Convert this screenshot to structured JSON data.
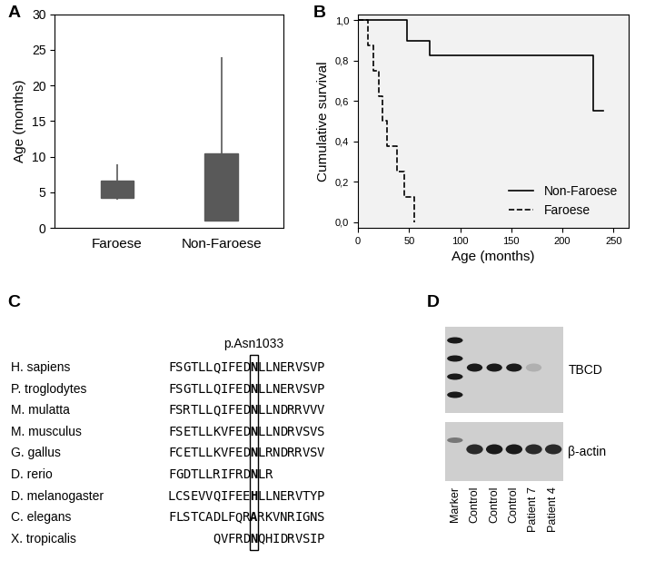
{
  "panel_labels": [
    "A",
    "B",
    "C",
    "D"
  ],
  "chart_data": [
    {
      "type": "box",
      "categories": [
        "Faroese",
        "Non-Faroese"
      ],
      "whisker_low": [
        4,
        1
      ],
      "q1": [
        4.2,
        1
      ],
      "q3": [
        6.7,
        10.5
      ],
      "whisker_high": [
        9,
        24
      ],
      "color": "#595959",
      "y_label": "Age (months)",
      "ylim": [
        0,
        30
      ],
      "yticks": [
        0,
        5,
        10,
        15,
        20,
        25,
        30
      ]
    },
    {
      "type": "step",
      "x_label": "Age (months)",
      "y_label": "Cumulative survival",
      "xlim": [
        0,
        265
      ],
      "xticks": [
        0,
        50,
        100,
        150,
        200,
        250
      ],
      "ylim": [
        -0.03,
        1.03
      ],
      "yticks": [
        {
          "value": 0,
          "label": "0,0"
        },
        {
          "value": 0.2,
          "label": "0,2"
        },
        {
          "value": 0.4,
          "label": "0,4"
        },
        {
          "value": 0.6,
          "label": "0,6"
        },
        {
          "value": 0.8,
          "label": "0,8"
        },
        {
          "value": 1.0,
          "label": "1,0"
        }
      ],
      "legend": "lower right",
      "series": [
        {
          "name": "Non-Faroese",
          "color": "#000000",
          "line_style": "solid",
          "x": [
            0,
            48,
            70,
            230,
            240
          ],
          "values": [
            1.0,
            0.9,
            0.825,
            0.55,
            0.55
          ]
        },
        {
          "name": "Faroese",
          "color": "#000000",
          "line_style": "dashed",
          "x": [
            0,
            10,
            15,
            20,
            24,
            28,
            38,
            45,
            55
          ],
          "values": [
            1.0,
            0.875,
            0.75,
            0.625,
            0.5,
            0.375,
            0.25,
            0.125,
            0.0
          ]
        }
      ]
    }
  ],
  "alignment": {
    "title": "p.Asn1033",
    "rows": [
      {
        "species": "H. sapiens",
        "sequence": "FSGTLLQIFEDNLLNERVSVP"
      },
      {
        "species": "P. troglodytes",
        "sequence": "FSGTLLQIFEDNLLNERVSVP"
      },
      {
        "species": "M. mulatta",
        "sequence": "FSRTLLQIFEDNLLNDRRVVV"
      },
      {
        "species": "M. musculus",
        "sequence": "FSETLLKVFEDNLLNDRVSVS"
      },
      {
        "species": "G. gallus",
        "sequence": "FCETLLKVFEDNLRNDRRVSV"
      },
      {
        "species": "D. rerio",
        "sequence": "FGDTLLRIFRDNLR"
      },
      {
        "species": "D. melanogaster",
        "sequence": "LCSEVVQIFEEHLLNERVTYP"
      },
      {
        "species": "C. elegans",
        "sequence": "FLSTCADLFQRARKVNRIGNS"
      },
      {
        "species": "X. tropicalis",
        "sequence": "      QVFRDNQHIDRVSIP"
      }
    ]
  },
  "blot": {
    "lanes": [
      "Marker",
      "Control",
      "Control",
      "Control",
      "Patient 7",
      "Patient 4"
    ],
    "bands": [
      "TBCD",
      "β-actin"
    ]
  }
}
